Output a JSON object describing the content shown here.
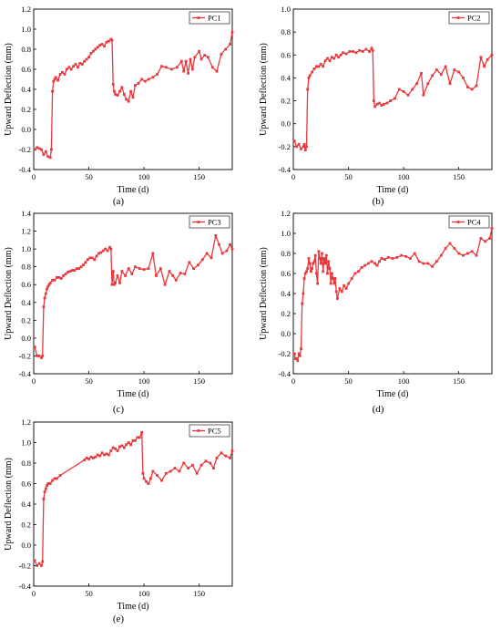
{
  "colors": {
    "series": "#e8383d",
    "axis": "#000000",
    "background": "#ffffff"
  },
  "chart_data": [
    {
      "type": "line",
      "caption": "(a)",
      "xlabel": "Time (d)",
      "ylabel": "Upward Deflection (mm)",
      "xlim": [
        0,
        180
      ],
      "ylim": [
        -0.4,
        1.2
      ],
      "xticks": [
        0,
        50,
        100,
        150
      ],
      "yticks": [
        -0.4,
        -0.2,
        0.0,
        0.2,
        0.4,
        0.6,
        0.8,
        1.0,
        1.2
      ],
      "yticklabels": [
        "-0.4",
        "-0.2",
        "0.0",
        "0.2",
        "0.4",
        "0.6",
        "0.8",
        "1.0",
        "1.2"
      ],
      "grid": false,
      "legend_position": "top-right",
      "series": [
        {
          "name": "PC1",
          "x": [
            1,
            3,
            5,
            7,
            9,
            11,
            13,
            15,
            16,
            17,
            18,
            19,
            20,
            22,
            24,
            26,
            28,
            30,
            32,
            34,
            36,
            38,
            40,
            42,
            44,
            46,
            48,
            50,
            52,
            54,
            56,
            58,
            60,
            62,
            64,
            66,
            68,
            70,
            71,
            72,
            73,
            74,
            76,
            78,
            80,
            82,
            84,
            86,
            88,
            90,
            92,
            95,
            98,
            101,
            104,
            108,
            112,
            116,
            120,
            125,
            130,
            134,
            136,
            138,
            140,
            142,
            144,
            146,
            150,
            152,
            155,
            158,
            162,
            166,
            170,
            174,
            178,
            180
          ],
          "y": [
            -0.2,
            -0.18,
            -0.19,
            -0.2,
            -0.25,
            -0.22,
            -0.27,
            -0.28,
            -0.2,
            0.38,
            0.48,
            0.5,
            0.52,
            0.49,
            0.55,
            0.57,
            0.55,
            0.6,
            0.62,
            0.6,
            0.63,
            0.65,
            0.62,
            0.66,
            0.65,
            0.68,
            0.7,
            0.72,
            0.76,
            0.78,
            0.8,
            0.82,
            0.84,
            0.85,
            0.83,
            0.87,
            0.88,
            0.9,
            0.89,
            0.45,
            0.38,
            0.35,
            0.34,
            0.38,
            0.42,
            0.35,
            0.3,
            0.28,
            0.38,
            0.32,
            0.44,
            0.46,
            0.5,
            0.48,
            0.5,
            0.52,
            0.55,
            0.63,
            0.62,
            0.6,
            0.62,
            0.68,
            0.58,
            0.68,
            0.56,
            0.7,
            0.6,
            0.72,
            0.78,
            0.7,
            0.74,
            0.72,
            0.62,
            0.58,
            0.75,
            0.8,
            0.85,
            0.97
          ]
        }
      ]
    },
    {
      "type": "line",
      "caption": "(b)",
      "xlabel": "Time (d)",
      "ylabel": "Upward Deflection (mm)",
      "xlim": [
        0,
        180
      ],
      "ylim": [
        -0.4,
        1.0
      ],
      "xticks": [
        0,
        50,
        100,
        150
      ],
      "yticks": [
        -0.4,
        -0.2,
        0.0,
        0.2,
        0.4,
        0.6,
        0.8,
        1.0
      ],
      "yticklabels": [
        "-0.4",
        "-0.2",
        "0.0",
        "0.2",
        "0.4",
        "0.6",
        "0.8",
        "1.0"
      ],
      "grid": false,
      "legend_position": "top-right",
      "series": [
        {
          "name": "PC2",
          "x": [
            1,
            3,
            5,
            7,
            9,
            10,
            11,
            12,
            13,
            14,
            15,
            17,
            19,
            21,
            23,
            25,
            27,
            29,
            31,
            33,
            35,
            37,
            39,
            41,
            43,
            45,
            48,
            51,
            54,
            57,
            60,
            63,
            66,
            69,
            71,
            72,
            73,
            74,
            76,
            78,
            80,
            82,
            85,
            88,
            92,
            96,
            100,
            104,
            108,
            112,
            116,
            118,
            122,
            126,
            130,
            134,
            138,
            142,
            146,
            150,
            154,
            158,
            162,
            166,
            170,
            173,
            176,
            180
          ],
          "y": [
            -0.15,
            -0.2,
            -0.18,
            -0.22,
            -0.2,
            -0.18,
            -0.23,
            -0.2,
            0.3,
            0.4,
            0.42,
            0.45,
            0.48,
            0.5,
            0.5,
            0.52,
            0.5,
            0.55,
            0.57,
            0.55,
            0.58,
            0.57,
            0.6,
            0.58,
            0.6,
            0.62,
            0.61,
            0.63,
            0.63,
            0.62,
            0.64,
            0.63,
            0.65,
            0.63,
            0.66,
            0.64,
            0.2,
            0.15,
            0.17,
            0.18,
            0.16,
            0.17,
            0.18,
            0.2,
            0.22,
            0.3,
            0.28,
            0.25,
            0.3,
            0.35,
            0.44,
            0.25,
            0.35,
            0.42,
            0.47,
            0.43,
            0.5,
            0.35,
            0.47,
            0.45,
            0.4,
            0.32,
            0.3,
            0.33,
            0.58,
            0.5,
            0.56,
            0.6
          ]
        }
      ]
    },
    {
      "type": "line",
      "caption": "(c)",
      "xlabel": "Time (d)",
      "ylabel": "Upward Deflection (mm)",
      "xlim": [
        0,
        180
      ],
      "ylim": [
        -0.4,
        1.4
      ],
      "xticks": [
        0,
        50,
        100,
        150
      ],
      "yticks": [
        -0.4,
        -0.2,
        0.0,
        0.2,
        0.4,
        0.6,
        0.8,
        1.0,
        1.2,
        1.4
      ],
      "yticklabels": [
        "-0.4",
        "-0.2",
        "0.0",
        "0.2",
        "0.4",
        "0.6",
        "0.8",
        "1.0",
        "1.2",
        "1.4"
      ],
      "grid": false,
      "legend_position": "top-right",
      "series": [
        {
          "name": "PC3",
          "x": [
            1,
            3,
            5,
            7,
            8,
            9,
            10,
            11,
            12,
            13,
            14,
            15,
            17,
            19,
            21,
            23,
            25,
            27,
            29,
            31,
            33,
            35,
            37,
            39,
            41,
            43,
            45,
            47,
            49,
            51,
            53,
            55,
            57,
            59,
            61,
            63,
            65,
            67,
            69,
            70,
            71,
            72,
            73,
            74,
            76,
            78,
            80,
            83,
            86,
            89,
            92,
            96,
            100,
            104,
            108,
            111,
            115,
            119,
            123,
            126,
            129,
            133,
            137,
            141,
            145,
            149,
            153,
            157,
            161,
            165,
            168,
            171,
            175,
            178,
            180
          ],
          "y": [
            -0.1,
            -0.2,
            -0.2,
            -0.22,
            -0.2,
            0.35,
            0.45,
            0.5,
            0.55,
            0.58,
            0.6,
            0.62,
            0.65,
            0.65,
            0.68,
            0.68,
            0.67,
            0.7,
            0.72,
            0.74,
            0.75,
            0.76,
            0.76,
            0.78,
            0.78,
            0.8,
            0.82,
            0.85,
            0.88,
            0.9,
            0.9,
            0.88,
            0.92,
            0.95,
            0.96,
            0.98,
            1.0,
            0.98,
            1.02,
            1.0,
            0.6,
            0.75,
            0.6,
            0.62,
            0.7,
            0.62,
            0.75,
            0.7,
            0.78,
            0.72,
            0.8,
            0.78,
            0.77,
            0.78,
            0.95,
            0.7,
            0.78,
            0.6,
            0.75,
            0.7,
            0.65,
            0.73,
            0.72,
            0.85,
            0.78,
            0.82,
            0.88,
            0.95,
            0.9,
            1.15,
            1.05,
            0.95,
            0.98,
            1.05,
            1.0
          ]
        }
      ]
    },
    {
      "type": "line",
      "caption": "(d)",
      "xlabel": "Time (d)",
      "ylabel": "Upward Deflection (mm)",
      "xlim": [
        0,
        180
      ],
      "ylim": [
        -0.4,
        1.2
      ],
      "xticks": [
        0,
        50,
        100,
        150
      ],
      "yticks": [
        -0.4,
        -0.2,
        0.0,
        0.2,
        0.4,
        0.6,
        0.8,
        1.0,
        1.2
      ],
      "yticklabels": [
        "-0.4",
        "-0.2",
        "0.0",
        "0.2",
        "0.4",
        "0.6",
        "0.8",
        "1.0",
        "1.2"
      ],
      "grid": false,
      "legend_position": "top-right",
      "series": [
        {
          "name": "PC4",
          "x": [
            1,
            2,
            3,
            4,
            5,
            6,
            7,
            8,
            9,
            10,
            11,
            12,
            13,
            14,
            15,
            16,
            17,
            18,
            19,
            20,
            21,
            22,
            23,
            24,
            25,
            26,
            27,
            28,
            29,
            30,
            31,
            32,
            33,
            34,
            35,
            36,
            37,
            38,
            39,
            40,
            42,
            44,
            46,
            48,
            50,
            53,
            56,
            59,
            62,
            65,
            68,
            71,
            74,
            76,
            78,
            80,
            83,
            86,
            90,
            94,
            98,
            102,
            106,
            110,
            114,
            118,
            122,
            126,
            130,
            134,
            138,
            142,
            146,
            150,
            154,
            158,
            162,
            166,
            170,
            174,
            178,
            180
          ],
          "y": [
            -0.2,
            -0.25,
            -0.25,
            -0.27,
            -0.2,
            -0.22,
            -0.15,
            0.3,
            0.4,
            0.55,
            0.6,
            0.62,
            0.65,
            0.75,
            0.7,
            0.62,
            0.65,
            0.7,
            0.72,
            0.78,
            0.6,
            0.5,
            0.82,
            0.75,
            0.7,
            0.8,
            0.62,
            0.75,
            0.7,
            0.78,
            0.6,
            0.72,
            0.65,
            0.5,
            0.6,
            0.55,
            0.5,
            0.55,
            0.42,
            0.35,
            0.45,
            0.42,
            0.48,
            0.45,
            0.5,
            0.55,
            0.6,
            0.62,
            0.66,
            0.68,
            0.7,
            0.72,
            0.7,
            0.68,
            0.72,
            0.75,
            0.74,
            0.76,
            0.75,
            0.76,
            0.78,
            0.77,
            0.75,
            0.8,
            0.72,
            0.7,
            0.7,
            0.67,
            0.72,
            0.78,
            0.85,
            0.9,
            0.85,
            0.8,
            0.78,
            0.8,
            0.82,
            0.78,
            0.95,
            0.92,
            0.95,
            1.05
          ]
        }
      ]
    },
    {
      "type": "line",
      "caption": "(e)",
      "xlabel": "Time (d)",
      "ylabel": "Upward Deflection (mm)",
      "xlim": [
        0,
        180
      ],
      "ylim": [
        -0.4,
        1.2
      ],
      "xticks": [
        0,
        50,
        100,
        150
      ],
      "yticks": [
        -0.4,
        -0.2,
        0.0,
        0.2,
        0.4,
        0.6,
        0.8,
        1.0,
        1.2
      ],
      "yticklabels": [
        "-0.4",
        "-0.2",
        "0.0",
        "0.2",
        "0.4",
        "0.6",
        "0.8",
        "1.0",
        "1.2"
      ],
      "grid": false,
      "legend_position": "top-right",
      "series": [
        {
          "name": "PC5",
          "x": [
            1,
            3,
            5,
            7,
            8,
            9,
            10,
            11,
            12,
            13,
            15,
            17,
            19,
            21,
            24,
            46,
            48,
            50,
            52,
            54,
            56,
            58,
            60,
            62,
            64,
            66,
            68,
            70,
            72,
            74,
            76,
            78,
            80,
            82,
            84,
            86,
            88,
            90,
            92,
            94,
            96,
            98,
            99,
            100,
            102,
            104,
            106,
            108,
            112,
            116,
            120,
            124,
            128,
            132,
            136,
            140,
            144,
            148,
            152,
            156,
            160,
            163,
            166,
            170,
            174,
            178,
            180
          ],
          "y": [
            -0.15,
            -0.2,
            -0.18,
            -0.2,
            -0.16,
            0.45,
            0.52,
            0.55,
            0.58,
            0.6,
            0.6,
            0.63,
            0.65,
            0.65,
            0.68,
            0.83,
            0.85,
            0.84,
            0.86,
            0.85,
            0.86,
            0.88,
            0.87,
            0.9,
            0.88,
            0.89,
            0.88,
            0.92,
            0.95,
            0.94,
            0.92,
            0.96,
            0.97,
            0.95,
            0.98,
            1.0,
            0.98,
            1.02,
            1.02,
            1.05,
            1.05,
            1.1,
            0.7,
            0.65,
            0.62,
            0.6,
            0.65,
            0.72,
            0.68,
            0.63,
            0.7,
            0.72,
            0.75,
            0.72,
            0.8,
            0.75,
            0.78,
            0.7,
            0.78,
            0.82,
            0.8,
            0.75,
            0.85,
            0.9,
            0.87,
            0.85,
            0.92
          ]
        }
      ]
    }
  ]
}
